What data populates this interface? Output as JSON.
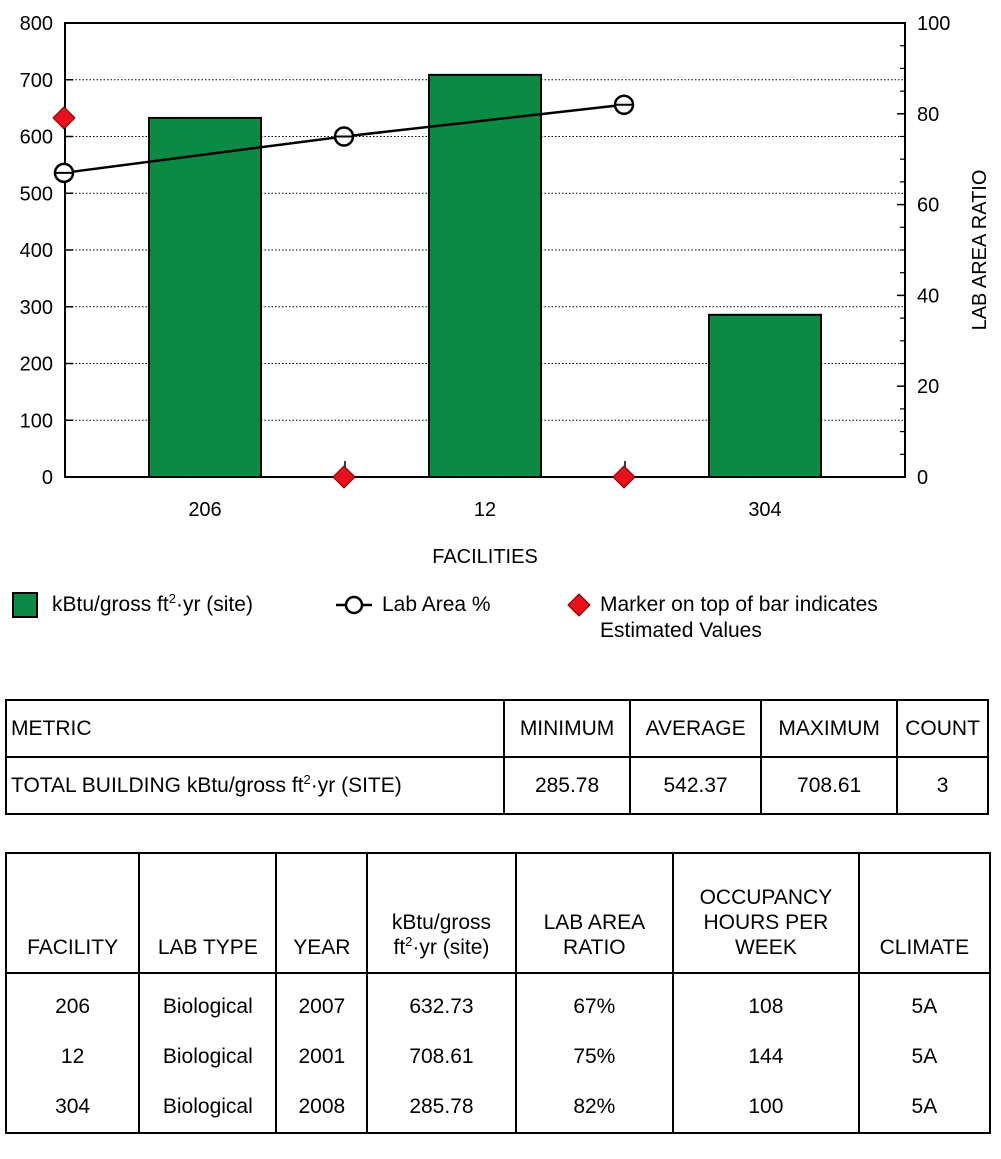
{
  "chart_data": {
    "type": "bar",
    "categories": [
      "206",
      "12",
      "304"
    ],
    "series": [
      {
        "name": "kBtu/gross ft²·yr (site)",
        "type": "bar",
        "values": [
          632.73,
          708.61,
          285.78
        ],
        "color": "#0a8a43"
      },
      {
        "name": "Lab Area %",
        "type": "line",
        "axis": "right",
        "values": [
          67,
          75,
          82
        ],
        "color": "#000000"
      },
      {
        "name": "Marker on top of bar indicates Estimated Values",
        "type": "marker",
        "values": [
          true,
          false,
          false
        ],
        "color": "#e8101a"
      }
    ],
    "xlabel": "FACILITIES",
    "ylabel": "",
    "y2label": "LAB AREA RATIO",
    "ylim": [
      0,
      800
    ],
    "y2lim": [
      0,
      100
    ],
    "yticks": [
      0,
      100,
      200,
      300,
      400,
      500,
      600,
      700,
      800
    ],
    "y2ticks": [
      0,
      20,
      40,
      60,
      80,
      100
    ],
    "grid": true,
    "legend_position": "bottom"
  },
  "legend": {
    "bar_label_pre": "kBtu/gross ft",
    "bar_label_sup": "2",
    "bar_label_post": "·yr (site)",
    "line_label": "Lab Area %",
    "marker_label_line1": "Marker on top of bar indicates",
    "marker_label_line2": "Estimated Values"
  },
  "summary_table": {
    "headers": {
      "metric": "METRIC",
      "minimum": "MINIMUM",
      "average": "AVERAGE",
      "maximum": "MAXIMUM",
      "count": "COUNT"
    },
    "row": {
      "metric_pre": "TOTAL BUILDING kBtu/gross ft",
      "metric_sup": "2",
      "metric_post": "·yr (SITE)",
      "minimum": "285.78",
      "average": "542.37",
      "maximum": "708.61",
      "count": "3"
    }
  },
  "facility_table": {
    "headers": {
      "facility": "FACILITY",
      "lab_type": "LAB TYPE",
      "year": "YEAR",
      "kbtu_line1": "kBtu/gross",
      "kbtu_line2_pre": "ft",
      "kbtu_line2_sup": "2",
      "kbtu_line2_post": "·yr (site)",
      "lab_area_line1": "LAB AREA",
      "lab_area_line2": "RATIO",
      "occ_line1": "OCCUPANCY",
      "occ_line2": "HOURS PER",
      "occ_line3": "WEEK",
      "climate": "CLIMATE"
    },
    "rows": [
      {
        "facility": "206",
        "lab_type": "Biological",
        "year": "2007",
        "kbtu": "632.73",
        "lab_area": "67%",
        "occupancy": "108",
        "climate": "5A"
      },
      {
        "facility": "12",
        "lab_type": "Biological",
        "year": "2001",
        "kbtu": "708.61",
        "lab_area": "75%",
        "occupancy": "144",
        "climate": "5A"
      },
      {
        "facility": "304",
        "lab_type": "Biological",
        "year": "2008",
        "kbtu": "285.78",
        "lab_area": "82%",
        "occupancy": "100",
        "climate": "5A"
      }
    ]
  }
}
